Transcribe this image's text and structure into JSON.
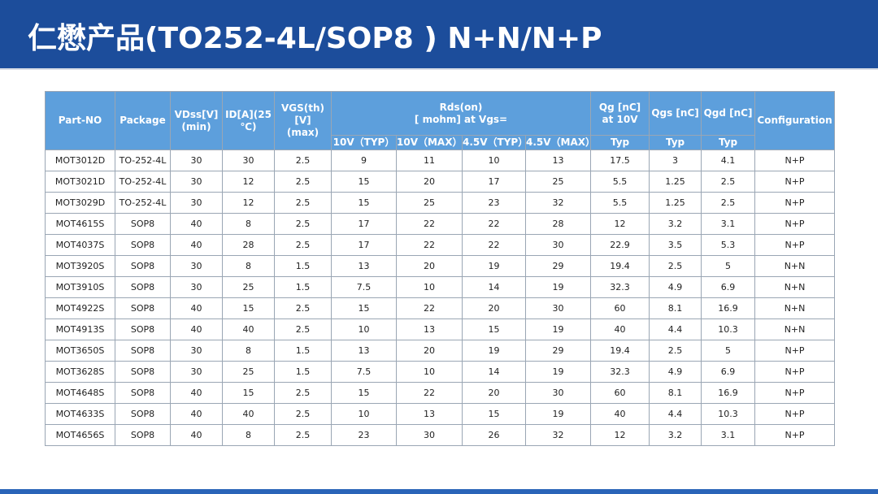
{
  "header": {
    "title": "仁懋产品(TO252-4L/SOP8 ) N+N/N+P"
  },
  "table": {
    "headers": [
      "Part-NO",
      "Package",
      "VDss[V]\n(min)",
      "ID[A](25\n℃)",
      "VGS(th)[V]\n(max)",
      "Rds(on)\n[ mohm] at Vgs=",
      "Qg [nC]\nat 10V",
      "Qgs [nC]",
      "Qgd [nC]",
      "Configuration"
    ],
    "subheaders": [
      "10V（TYP）",
      "10V（MAX）",
      "4.5V（TYP）",
      "4.5V（MAX）",
      "Typ",
      "Typ",
      "Typ"
    ],
    "rows": [
      [
        "MOT3012D",
        "TO-252-4L",
        "30",
        "30",
        "2.5",
        "9",
        "11",
        "10",
        "13",
        "17.5",
        "3",
        "4.1",
        "N+P"
      ],
      [
        "MOT3021D",
        "TO-252-4L",
        "30",
        "12",
        "2.5",
        "15",
        "20",
        "17",
        "25",
        "5.5",
        "1.25",
        "2.5",
        "N+P"
      ],
      [
        "MOT3029D",
        "TO-252-4L",
        "30",
        "12",
        "2.5",
        "15",
        "25",
        "23",
        "32",
        "5.5",
        "1.25",
        "2.5",
        "N+P"
      ],
      [
        "MOT4615S",
        "SOP8",
        "40",
        "8",
        "2.5",
        "17",
        "22",
        "22",
        "28",
        "12",
        "3.2",
        "3.1",
        "N+P"
      ],
      [
        "MOT4037S",
        "SOP8",
        "40",
        "28",
        "2.5",
        "17",
        "22",
        "22",
        "30",
        "22.9",
        "3.5",
        "5.3",
        "N+P"
      ],
      [
        "MOT3920S",
        "SOP8",
        "30",
        "8",
        "1.5",
        "13",
        "20",
        "19",
        "29",
        "19.4",
        "2.5",
        "5",
        "N+N"
      ],
      [
        "MOT3910S",
        "SOP8",
        "30",
        "25",
        "1.5",
        "7.5",
        "10",
        "14",
        "19",
        "32.3",
        "4.9",
        "6.9",
        "N+N"
      ],
      [
        "MOT4922S",
        "SOP8",
        "40",
        "15",
        "2.5",
        "15",
        "22",
        "20",
        "30",
        "60",
        "8.1",
        "16.9",
        "N+N"
      ],
      [
        "MOT4913S",
        "SOP8",
        "40",
        "40",
        "2.5",
        "10",
        "13",
        "15",
        "19",
        "40",
        "4.4",
        "10.3",
        "N+N"
      ],
      [
        "MOT3650S",
        "SOP8",
        "30",
        "8",
        "1.5",
        "13",
        "20",
        "19",
        "29",
        "19.4",
        "2.5",
        "5",
        "N+P"
      ],
      [
        "MOT3628S",
        "SOP8",
        "30",
        "25",
        "1.5",
        "7.5",
        "10",
        "14",
        "19",
        "32.3",
        "4.9",
        "6.9",
        "N+P"
      ],
      [
        "MOT4648S",
        "SOP8",
        "40",
        "15",
        "2.5",
        "15",
        "22",
        "20",
        "30",
        "60",
        "8.1",
        "16.9",
        "N+P"
      ],
      [
        "MOT4633S",
        "SOP8",
        "40",
        "40",
        "2.5",
        "10",
        "13",
        "15",
        "19",
        "40",
        "4.4",
        "10.3",
        "N+P"
      ],
      [
        "MOT4656S",
        "SOP8",
        "40",
        "8",
        "2.5",
        "23",
        "30",
        "26",
        "32",
        "12",
        "3.2",
        "3.1",
        "N+P"
      ]
    ]
  }
}
